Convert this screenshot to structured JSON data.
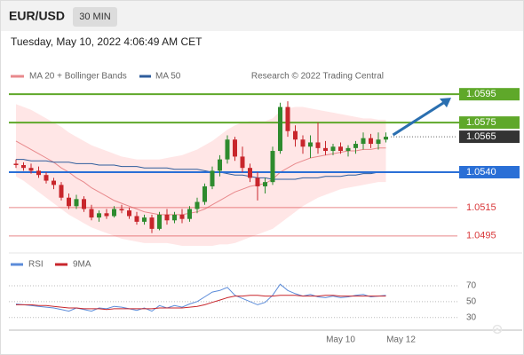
{
  "header": {
    "symbol": "EUR/USD",
    "timeframe": "30 MIN",
    "timestamp": "Tuesday, May 10, 2022 4:06:49 AM CET"
  },
  "chart_data": [
    {
      "type": "candlestick",
      "source": "Research © 2022 Trading Central",
      "up_color": "#2e8b2e",
      "down_color": "#c8262c",
      "ylim": [
        1.0483,
        1.0602
      ],
      "open": [
        1.0546,
        1.0545,
        1.0543,
        1.0541,
        1.0538,
        1.0534,
        1.0531,
        1.0522,
        1.0516,
        1.0521,
        1.0514,
        1.0508,
        1.0511,
        1.0509,
        1.0514,
        1.0513,
        1.0509,
        1.0505,
        1.0508,
        1.05,
        1.051,
        1.0506,
        1.051,
        1.0507,
        1.0514,
        1.0519,
        1.053,
        1.0541,
        1.0549,
        1.0563,
        1.0551,
        1.0543,
        1.0536,
        1.053,
        1.0533,
        1.0555,
        1.0586,
        1.0569,
        1.0563,
        1.0558,
        1.0561,
        1.0557,
        1.0555,
        1.0558,
        1.0555,
        1.0557,
        1.056,
        1.0564,
        1.056,
        1.0563,
        null,
        null
      ],
      "high": [
        1.0549,
        1.0547,
        1.0546,
        1.0544,
        1.054,
        1.0536,
        1.0533,
        1.0525,
        1.0524,
        1.0523,
        1.0517,
        1.0513,
        1.0514,
        1.0516,
        1.0517,
        1.0515,
        1.0512,
        1.051,
        1.051,
        1.0512,
        1.0514,
        1.0512,
        1.0514,
        1.0516,
        1.0522,
        1.0532,
        1.0544,
        1.0552,
        1.0566,
        1.0565,
        1.0558,
        1.0546,
        1.054,
        1.0536,
        1.0558,
        1.0589,
        1.059,
        1.0573,
        1.0566,
        1.0566,
        1.0575,
        1.0562,
        1.056,
        1.0561,
        1.0559,
        1.0562,
        1.0568,
        1.0567,
        1.0568,
        1.0568,
        null,
        null
      ],
      "low": [
        1.0543,
        1.0541,
        1.0539,
        1.0536,
        1.0532,
        1.0528,
        1.052,
        1.0514,
        1.0514,
        1.0512,
        1.0506,
        1.0505,
        1.0507,
        1.0508,
        1.0511,
        1.0507,
        1.0503,
        1.0503,
        1.0497,
        1.0499,
        1.0503,
        1.0504,
        1.0504,
        1.0505,
        1.0511,
        1.0517,
        1.0528,
        1.0537,
        1.0546,
        1.0548,
        1.054,
        1.0533,
        1.052,
        1.0525,
        1.0531,
        1.0553,
        1.0565,
        1.0558,
        1.0553,
        1.055,
        1.0553,
        1.0552,
        1.0552,
        1.0553,
        1.0551,
        1.0553,
        1.0556,
        1.0557,
        1.0556,
        1.0561,
        null,
        null
      ],
      "close": [
        1.0545,
        1.0543,
        1.0541,
        1.0538,
        1.0534,
        1.0531,
        1.0522,
        1.0516,
        1.0521,
        1.0514,
        1.0508,
        1.0511,
        1.0509,
        1.0514,
        1.0513,
        1.0509,
        1.0505,
        1.0508,
        1.05,
        1.051,
        1.0506,
        1.051,
        1.0507,
        1.0514,
        1.0519,
        1.053,
        1.0541,
        1.0549,
        1.0563,
        1.0551,
        1.0543,
        1.0536,
        1.053,
        1.0533,
        1.0555,
        1.0586,
        1.0569,
        1.0563,
        1.0558,
        1.0561,
        1.0557,
        1.0555,
        1.0558,
        1.0555,
        1.0557,
        1.056,
        1.0564,
        1.056,
        1.0563,
        1.0565,
        null,
        null
      ],
      "series": [
        {
          "name": "MA 20 + Bollinger Bands",
          "color": "#e8898c",
          "band_color": "#ffd6d6",
          "values": [
            1.0562,
            1.0559,
            1.0556,
            1.0553,
            1.055,
            1.0547,
            1.0543,
            1.054,
            1.0536,
            1.0533,
            1.0529,
            1.0526,
            1.0523,
            1.052,
            1.0518,
            1.0516,
            1.0514,
            1.0512,
            1.0511,
            1.051,
            1.051,
            1.051,
            1.051,
            1.0511,
            1.0512,
            1.0514,
            1.0517,
            1.052,
            1.0523,
            1.0526,
            1.0528,
            1.053,
            1.0531,
            1.0532,
            1.0535,
            1.054,
            1.0543,
            1.0546,
            1.0548,
            1.055,
            1.0551,
            1.0552,
            1.0553,
            1.0554,
            1.0555,
            1.0555,
            1.0556,
            1.0556,
            1.0557,
            1.0557,
            null,
            null
          ],
          "upper": [
            1.0588,
            1.0586,
            1.0584,
            1.0581,
            1.0578,
            1.0575,
            1.0572,
            1.0568,
            1.0565,
            1.0562,
            1.0559,
            1.0557,
            1.0555,
            1.0553,
            1.0551,
            1.055,
            1.0549,
            1.0549,
            1.0549,
            1.0549,
            1.055,
            1.0551,
            1.0552,
            1.0554,
            1.0556,
            1.0559,
            1.0562,
            1.0566,
            1.057,
            1.0573,
            1.0575,
            1.0576,
            1.0576,
            1.0576,
            1.0578,
            1.0583,
            1.0585,
            1.0586,
            1.0586,
            1.0585,
            1.0584,
            1.0583,
            1.0582,
            1.0581,
            1.058,
            1.0579,
            1.0578,
            1.0578,
            1.0577,
            1.0577,
            null,
            null
          ],
          "lower": [
            1.0537,
            1.0534,
            1.053,
            1.0526,
            1.0522,
            1.0518,
            1.0514,
            1.051,
            1.0507,
            1.0504,
            1.0501,
            1.0499,
            1.0497,
            1.0495,
            1.0493,
            1.0492,
            1.0491,
            1.049,
            1.049,
            1.049,
            1.049,
            1.0489,
            1.0488,
            1.0488,
            1.0488,
            1.0488,
            1.0488,
            1.0489,
            1.0489,
            1.049,
            1.0492,
            1.0494,
            1.0496,
            1.0498,
            1.05,
            1.0504,
            1.0508,
            1.0512,
            1.0516,
            1.0519,
            1.0522,
            1.0524,
            1.0526,
            1.0528,
            1.0529,
            1.053,
            1.0531,
            1.0532,
            1.0533,
            1.0533,
            null,
            null
          ]
        },
        {
          "name": "MA 50",
          "color": "#2f5d9c",
          "values": [
            1.0549,
            1.0549,
            1.0548,
            1.0548,
            1.0548,
            1.0547,
            1.0547,
            1.0547,
            1.0546,
            1.0546,
            1.0546,
            1.0545,
            1.0545,
            1.0545,
            1.0544,
            1.0544,
            1.0544,
            1.0543,
            1.0543,
            1.0543,
            1.0543,
            1.0542,
            1.0542,
            1.0542,
            1.0542,
            1.0541,
            1.054,
            1.054,
            1.0539,
            1.0538,
            1.0538,
            1.0537,
            1.0536,
            1.0536,
            1.0535,
            1.0535,
            1.0535,
            1.0535,
            1.0536,
            1.0536,
            1.0536,
            1.0537,
            1.0537,
            1.0537,
            1.0538,
            1.0538,
            1.0539,
            1.0539,
            1.054,
            1.054,
            null,
            null
          ]
        }
      ],
      "levels": [
        {
          "value": 1.0595,
          "color": "#5fa82a",
          "style": "box"
        },
        {
          "value": 1.0575,
          "color": "#5fa82a",
          "style": "box"
        },
        {
          "value": 1.0565,
          "color": "#333333",
          "style": "current"
        },
        {
          "value": 1.054,
          "label": "1.0540",
          "color": "#2a6fd6",
          "style": "box"
        },
        {
          "value": 1.0515,
          "color": "#d9383a",
          "style": "text"
        },
        {
          "value": 1.0495,
          "color": "#d9383a",
          "style": "text"
        }
      ]
    },
    {
      "type": "line",
      "ylim": [
        14,
        89
      ],
      "yticks": [
        70,
        50,
        30
      ],
      "categories": [
        null,
        null,
        null,
        null,
        null,
        null,
        null,
        null,
        null,
        null,
        null,
        null,
        null,
        null,
        null,
        null,
        null,
        null,
        null,
        null,
        null,
        null,
        null,
        null,
        null,
        null,
        null,
        null,
        null,
        null,
        null,
        null,
        null,
        null,
        null,
        null,
        null,
        null,
        null,
        null,
        null,
        null,
        null,
        "May 10",
        null,
        null,
        null,
        null,
        null,
        null,
        null,
        "May 12"
      ],
      "series": [
        {
          "name": "RSI",
          "color": "#5b8bd9",
          "values": [
            47,
            46,
            45,
            44,
            43,
            42,
            40,
            38,
            42,
            40,
            38,
            42,
            41,
            44,
            43,
            41,
            39,
            42,
            38,
            45,
            42,
            45,
            43,
            47,
            50,
            56,
            62,
            64,
            68,
            58,
            54,
            50,
            46,
            49,
            58,
            72,
            64,
            60,
            57,
            59,
            56,
            55,
            57,
            55,
            56,
            58,
            59,
            56,
            57,
            58,
            null,
            null
          ]
        },
        {
          "name": "9MA",
          "color": "#c8262c",
          "values": [
            46,
            46,
            46,
            45,
            45,
            44,
            43,
            42,
            42,
            41,
            41,
            41,
            40,
            41,
            41,
            41,
            41,
            41,
            41,
            42,
            42,
            42,
            42,
            43,
            44,
            46,
            49,
            52,
            55,
            57,
            57,
            58,
            58,
            57,
            57,
            58,
            58,
            58,
            57,
            57,
            57,
            58,
            58,
            57,
            57,
            57,
            57,
            57,
            57,
            57,
            null,
            null
          ]
        }
      ]
    }
  ]
}
